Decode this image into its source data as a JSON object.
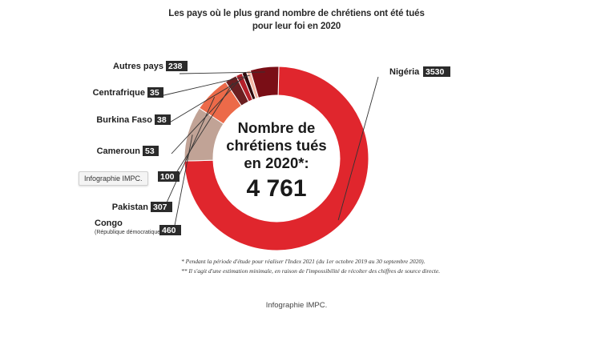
{
  "title": {
    "line1": "Les pays où le plus grand nombre de chrétiens ont été tués",
    "line2": "pour leur foi en 2020"
  },
  "center": {
    "line1": "Nombre de",
    "line2": "chrétiens tués",
    "line3": "en 2020*:",
    "total": "4 761"
  },
  "chart_data": {
    "type": "pie",
    "donut": true,
    "title": "Les pays où le plus grand nombre de chrétiens ont été tués pour leur foi en 2020",
    "total": 4761,
    "slices": [
      {
        "name": "Nigéria",
        "value": 3530,
        "color": "#e0262d"
      },
      {
        "name": "Congo",
        "sublabel": "(République démocratique)",
        "value": 460,
        "color": "#c1a396"
      },
      {
        "name": "Pakistan",
        "value": 307,
        "color": "#ec6a49"
      },
      {
        "name": "",
        "value": 100,
        "color": "#6b1f21"
      },
      {
        "name": "Cameroun",
        "value": 53,
        "color": "#b4202a"
      },
      {
        "name": "Burkina Faso",
        "value": 38,
        "color": "#2f0a0d"
      },
      {
        "name": "Centrafrique",
        "value": 35,
        "color": "#f3b7a5"
      },
      {
        "name": "Autres pays",
        "value": 238,
        "color": "#7a0e16"
      }
    ]
  },
  "notes": {
    "n1": "* Pendant la période d'étude pour réaliser l'Index 2021 (du 1er octobre 2019 au 30 septembre 2020).",
    "n2": "** Il s'agit d'une estimation minimale, en raison de l'impossibilité de récolter des chiffres de source directe."
  },
  "tooltip": "Infographie IMPC.",
  "caption": "Infographie IMPC."
}
